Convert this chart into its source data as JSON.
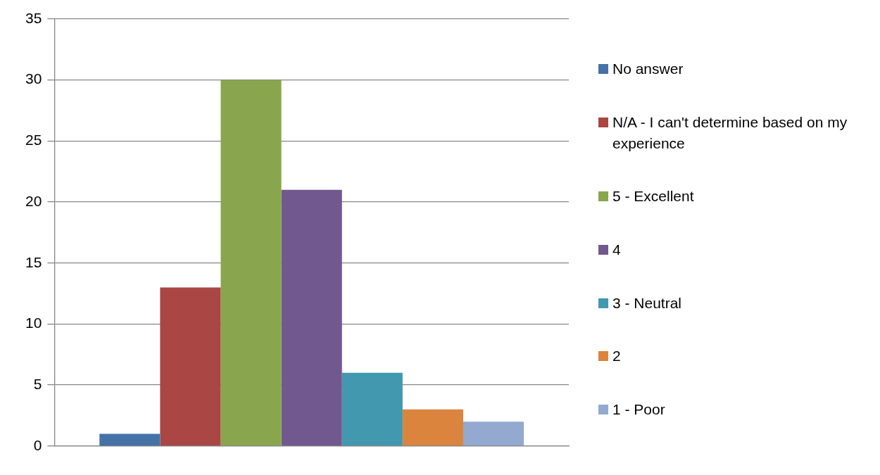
{
  "chart_data": {
    "type": "bar",
    "categories": [
      null
    ],
    "series": [
      {
        "name": "No answer",
        "color": "#4572a7",
        "values": [
          1
        ]
      },
      {
        "name": "N/A - I can't determine based on my experience",
        "color": "#aa4643",
        "values": [
          13
        ]
      },
      {
        "name": "5 - Excellent",
        "color": "#89a54e",
        "values": [
          30
        ]
      },
      {
        "name": "4",
        "color": "#71588f",
        "values": [
          21
        ]
      },
      {
        "name": "3 - Neutral",
        "color": "#4198af",
        "values": [
          6
        ]
      },
      {
        "name": "2",
        "color": "#db843d",
        "values": [
          3
        ]
      },
      {
        "name": "1 - Poor",
        "color": "#93a9cf",
        "values": [
          2
        ]
      }
    ],
    "ylim": [
      0,
      35
    ],
    "yticks": [
      0,
      5,
      10,
      15,
      20,
      25,
      30,
      35
    ],
    "grid": "y",
    "legend": "right"
  }
}
